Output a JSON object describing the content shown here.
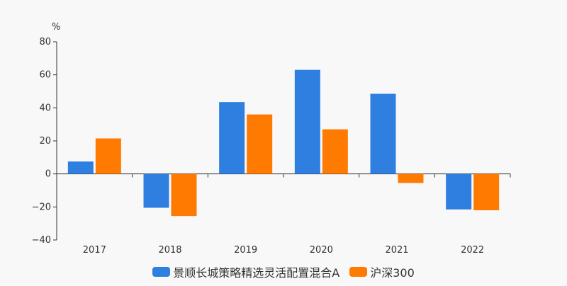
{
  "chart_data": {
    "type": "bar",
    "unit_label": "%",
    "categories": [
      "2017",
      "2018",
      "2019",
      "2020",
      "2021",
      "2022"
    ],
    "series": [
      {
        "name": "景顺长城策略精选灵活配置混合A",
        "color": "#2e7fe0",
        "values": [
          7.5,
          -20.5,
          43.5,
          63.0,
          48.5,
          -21.5
        ]
      },
      {
        "name": "沪深300",
        "color": "#ff7a00",
        "values": [
          21.5,
          -25.5,
          36.0,
          27.0,
          -5.5,
          -22.0
        ]
      }
    ],
    "ylim": [
      -40,
      80
    ],
    "yticks": [
      -40,
      -20,
      0,
      20,
      40,
      60,
      80
    ],
    "ytick_labels": [
      "−40",
      "−20",
      "0",
      "20",
      "40",
      "60",
      "80"
    ],
    "grid": false,
    "legend_position": "bottom"
  }
}
